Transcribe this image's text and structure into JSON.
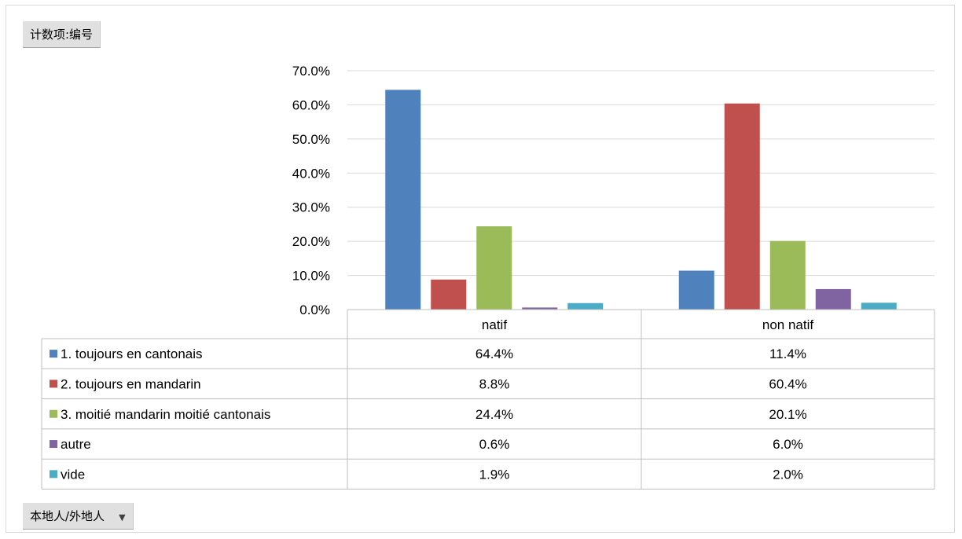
{
  "pivot": {
    "value_field": "计数项:编号",
    "axis_field": "本地人/外地人",
    "dropdown_icon": "chevron-down-icon"
  },
  "chart_data": {
    "type": "bar",
    "categories": [
      "natif",
      "non natif"
    ],
    "y_ticks": [
      "0.0%",
      "10.0%",
      "20.0%",
      "30.0%",
      "40.0%",
      "50.0%",
      "60.0%",
      "70.0%"
    ],
    "ylim": [
      0,
      70
    ],
    "grid": true,
    "legend_placement": "data-table",
    "series": [
      {
        "name": "1. toujours en cantonais",
        "color": "#4f81bd",
        "values": [
          64.4,
          11.4
        ],
        "labels": [
          "64.4%",
          "11.4%"
        ]
      },
      {
        "name": "2. toujours en mandarin",
        "color": "#c0504d",
        "values": [
          8.8,
          60.4
        ],
        "labels": [
          "8.8%",
          "60.4%"
        ]
      },
      {
        "name": "3. moitié mandarin moitié cantonais",
        "color": "#9bbb59",
        "values": [
          24.4,
          20.1
        ],
        "labels": [
          "24.4%",
          "20.1%"
        ]
      },
      {
        "name": "autre",
        "color": "#8064a2",
        "values": [
          0.6,
          6.0
        ],
        "labels": [
          "0.6%",
          "6.0%"
        ]
      },
      {
        "name": "vide",
        "color": "#4bacc6",
        "values": [
          1.9,
          2.0
        ],
        "labels": [
          "1.9%",
          "2.0%"
        ]
      }
    ]
  }
}
